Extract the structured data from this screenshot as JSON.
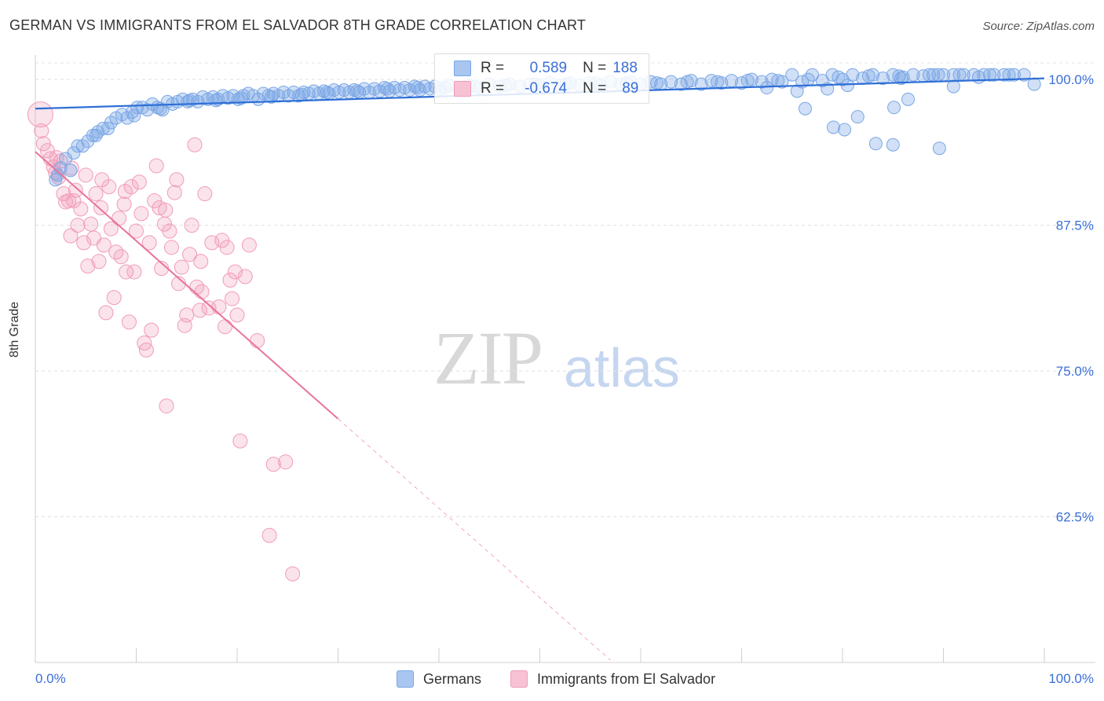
{
  "title": "GERMAN VS IMMIGRANTS FROM EL SALVADOR 8TH GRADE CORRELATION CHART",
  "source": "Source: ZipAtlas.com",
  "watermark": {
    "zip": "ZIP",
    "atlas": "atlas"
  },
  "legend": {
    "series1": {
      "r_label": "R =",
      "r_value": "0.589",
      "n_label": "N =",
      "n_value": "188"
    },
    "series2": {
      "r_label": "R =",
      "r_value": "-0.674",
      "n_label": "N =",
      "n_value": "89"
    }
  },
  "bottom_legend": [
    "Germans",
    "Immigrants from El Salvador"
  ],
  "colors": {
    "blue": "#7aa7e6",
    "blue_line": "#2f6fd6",
    "pink": "#f19bb8",
    "pink_line": "#e8739d",
    "axis_text": "#3a6fd8"
  },
  "chart_data": {
    "type": "scatter",
    "title": "GERMAN VS IMMIGRANTS FROM EL SALVADOR 8TH GRADE CORRELATION CHART",
    "xlabel": "",
    "ylabel": "8th Grade",
    "xlim": [
      0,
      100
    ],
    "ylim": [
      50,
      102.1
    ],
    "x_tick_labels": [
      "0.0%",
      "100.0%"
    ],
    "y_ticks": [
      100,
      87.5,
      75,
      62.5
    ],
    "y_tick_labels": [
      "100.0%",
      "87.5%",
      "75.0%",
      "62.5%"
    ],
    "grid": true,
    "series": [
      {
        "name": "Germans",
        "color": "#7aa7e6",
        "trend": {
          "x": [
            0,
            100
          ],
          "y": [
            97.5,
            100.1
          ]
        },
        "points": [
          [
            2,
            91.4
          ],
          [
            2.5,
            92.4
          ],
          [
            3,
            93.2
          ],
          [
            3.5,
            92.2
          ],
          [
            4.2,
            94.3
          ],
          [
            4.7,
            94.3
          ],
          [
            5.2,
            94.7
          ],
          [
            5.7,
            95.2
          ],
          [
            6.2,
            95.5
          ],
          [
            6.7,
            95.8
          ],
          [
            7.2,
            95.8
          ],
          [
            8,
            96.7
          ],
          [
            8.6,
            97
          ],
          [
            9.1,
            96.7
          ],
          [
            9.6,
            97.2
          ],
          [
            10.1,
            97.6
          ],
          [
            10.6,
            97.6
          ],
          [
            11.1,
            97.4
          ],
          [
            11.6,
            97.9
          ],
          [
            12.1,
            97.6
          ],
          [
            12.6,
            97.4
          ],
          [
            13.1,
            98.1
          ],
          [
            13.6,
            97.9
          ],
          [
            14.1,
            98.1
          ],
          [
            14.6,
            98.3
          ],
          [
            15.1,
            98.1
          ],
          [
            15.6,
            98.3
          ],
          [
            16.1,
            98.1
          ],
          [
            16.6,
            98.5
          ],
          [
            17.1,
            98.3
          ],
          [
            17.6,
            98.5
          ],
          [
            18.1,
            98.3
          ],
          [
            18.6,
            98.6
          ],
          [
            19.1,
            98.4
          ],
          [
            19.6,
            98.6
          ],
          [
            20.1,
            98.3
          ],
          [
            20.6,
            98.6
          ],
          [
            21.1,
            98.8
          ],
          [
            21.6,
            98.6
          ],
          [
            22.1,
            98.3
          ],
          [
            22.6,
            98.8
          ],
          [
            23.1,
            98.6
          ],
          [
            23.6,
            98.8
          ],
          [
            24.1,
            98.6
          ],
          [
            24.6,
            98.9
          ],
          [
            25.1,
            98.6
          ],
          [
            25.6,
            98.9
          ],
          [
            26.1,
            98.6
          ],
          [
            26.6,
            98.9
          ],
          [
            27.1,
            98.8
          ],
          [
            27.6,
            99
          ],
          [
            28.1,
            98.8
          ],
          [
            28.6,
            99
          ],
          [
            29.1,
            98.8
          ],
          [
            29.6,
            99.1
          ],
          [
            30.1,
            98.9
          ],
          [
            30.6,
            99.1
          ],
          [
            31.1,
            98.9
          ],
          [
            31.6,
            99.1
          ],
          [
            32.1,
            98.9
          ],
          [
            32.6,
            99.2
          ],
          [
            33.1,
            98.9
          ],
          [
            33.6,
            99.2
          ],
          [
            34.1,
            99
          ],
          [
            34.6,
            99.3
          ],
          [
            35.1,
            99
          ],
          [
            35.6,
            99.3
          ],
          [
            36.1,
            99.1
          ],
          [
            36.6,
            99.3
          ],
          [
            37.1,
            99.1
          ],
          [
            37.6,
            99.4
          ],
          [
            38.1,
            99.1
          ],
          [
            38.6,
            99.4
          ],
          [
            39.1,
            99.2
          ],
          [
            39.6,
            99.4
          ],
          [
            40.1,
            99.2
          ],
          [
            41,
            99.5
          ],
          [
            42,
            99.3
          ],
          [
            43,
            99.5
          ],
          [
            44,
            99.3
          ],
          [
            45,
            99.6
          ],
          [
            46,
            99.4
          ],
          [
            47,
            99.6
          ],
          [
            48,
            99.4
          ],
          [
            49,
            99.6
          ],
          [
            50,
            99.5
          ],
          [
            51,
            99.7
          ],
          [
            52,
            99.5
          ],
          [
            53,
            99.7
          ],
          [
            54,
            99.5
          ],
          [
            55,
            99.7
          ],
          [
            56,
            99.5
          ],
          [
            57,
            99.8
          ],
          [
            58,
            99.6
          ],
          [
            59,
            99.8
          ],
          [
            60,
            99.6
          ],
          [
            61,
            99.8
          ],
          [
            62,
            99.6
          ],
          [
            63,
            99.8
          ],
          [
            64,
            99.6
          ],
          [
            65,
            99.9
          ],
          [
            66,
            99.6
          ],
          [
            67,
            99.9
          ],
          [
            68,
            99.7
          ],
          [
            69,
            99.9
          ],
          [
            70,
            99.7
          ],
          [
            71,
            100
          ],
          [
            72,
            99.8
          ],
          [
            73,
            100
          ],
          [
            74,
            99.8
          ],
          [
            75,
            100.4
          ],
          [
            76,
            99.8
          ],
          [
            77,
            100.4
          ],
          [
            78,
            99.9
          ],
          [
            79,
            100.4
          ],
          [
            80,
            100
          ],
          [
            81,
            100.4
          ],
          [
            82,
            100.1
          ],
          [
            83,
            100.4
          ],
          [
            84,
            100.1
          ],
          [
            85,
            100.4
          ],
          [
            86,
            100.2
          ],
          [
            87,
            100.4
          ],
          [
            88,
            100.3
          ],
          [
            89,
            100.4
          ],
          [
            90,
            100.4
          ],
          [
            91,
            100.4
          ],
          [
            92,
            100.4
          ],
          [
            93,
            100.4
          ],
          [
            94,
            100.4
          ],
          [
            95,
            100.4
          ],
          [
            96,
            100.4
          ],
          [
            97,
            100.4
          ],
          [
            98,
            100.4
          ],
          [
            99,
            99.6
          ],
          [
            2.2,
            91.8
          ],
          [
            3.8,
            93.7
          ],
          [
            6,
            95.2
          ],
          [
            7.5,
            96.3
          ],
          [
            9.8,
            96.9
          ],
          [
            12.4,
            97.5
          ],
          [
            15.3,
            98.2
          ],
          [
            17.9,
            98.2
          ],
          [
            20.4,
            98.4
          ],
          [
            23.4,
            98.5
          ],
          [
            26.4,
            98.7
          ],
          [
            28.9,
            98.9
          ],
          [
            31.9,
            99
          ],
          [
            34.9,
            99.2
          ],
          [
            37.9,
            99.3
          ],
          [
            40.6,
            99.3
          ],
          [
            43.6,
            99.4
          ],
          [
            46.6,
            99.5
          ],
          [
            49.6,
            99.6
          ],
          [
            52.6,
            99.6
          ],
          [
            55.6,
            99.7
          ],
          [
            58.6,
            99.7
          ],
          [
            61.6,
            99.7
          ],
          [
            64.6,
            99.8
          ],
          [
            67.6,
            99.8
          ],
          [
            70.6,
            99.9
          ],
          [
            73.6,
            99.9
          ],
          [
            76.6,
            100
          ],
          [
            79.6,
            100.2
          ],
          [
            82.6,
            100.3
          ],
          [
            85.6,
            100.3
          ],
          [
            88.6,
            100.4
          ],
          [
            91.6,
            100.4
          ],
          [
            94.6,
            100.4
          ],
          [
            72.5,
            99.3
          ],
          [
            75.5,
            99
          ],
          [
            78.5,
            99.2
          ],
          [
            80.5,
            99.5
          ],
          [
            85.8,
            100.1
          ],
          [
            89.5,
            100.4
          ],
          [
            91,
            99.4
          ],
          [
            93.5,
            100.2
          ],
          [
            96.5,
            100.4
          ],
          [
            76.3,
            97.5
          ],
          [
            79.1,
            95.9
          ],
          [
            80.2,
            95.7
          ],
          [
            81.5,
            96.8
          ],
          [
            83.3,
            94.5
          ],
          [
            85,
            94.4
          ],
          [
            85.1,
            97.6
          ],
          [
            86.5,
            98.3
          ],
          [
            89.6,
            94.1
          ]
        ]
      },
      {
        "name": "Immigrants from El Salvador",
        "color": "#f19bb8",
        "trend": {
          "x": [
            0,
            30
          ],
          "y": [
            93.8,
            70.9
          ]
        },
        "trend_dashed": {
          "x": [
            30,
            57
          ],
          "y": [
            70.9,
            50.2
          ]
        },
        "points": [
          [
            0.5,
            97
          ],
          [
            0.6,
            95.6
          ],
          [
            0.8,
            94.5
          ],
          [
            1.2,
            93.9
          ],
          [
            1.5,
            93.2
          ],
          [
            1.8,
            92.5
          ],
          [
            2,
            92
          ],
          [
            2.3,
            91.6
          ],
          [
            2.5,
            93
          ],
          [
            2.8,
            90.2
          ],
          [
            3,
            89.5
          ],
          [
            3.3,
            89.6
          ],
          [
            3.5,
            86.6
          ],
          [
            3.8,
            89.6
          ],
          [
            4,
            90.5
          ],
          [
            4.2,
            87.5
          ],
          [
            4.5,
            88.9
          ],
          [
            4.8,
            86
          ],
          [
            5,
            91.8
          ],
          [
            5.2,
            84
          ],
          [
            5.5,
            87.6
          ],
          [
            5.8,
            86.4
          ],
          [
            6,
            90.2
          ],
          [
            6.3,
            84.4
          ],
          [
            6.5,
            89
          ],
          [
            6.8,
            85.8
          ],
          [
            7,
            80
          ],
          [
            7.3,
            90.8
          ],
          [
            7.5,
            87.2
          ],
          [
            7.8,
            81.3
          ],
          [
            8,
            85.2
          ],
          [
            8.3,
            88.1
          ],
          [
            8.5,
            84.8
          ],
          [
            8.8,
            89.3
          ],
          [
            9,
            83.5
          ],
          [
            9.3,
            79.2
          ],
          [
            9.5,
            90.8
          ],
          [
            9.8,
            83.5
          ],
          [
            10,
            87
          ],
          [
            10.3,
            91.2
          ],
          [
            10.5,
            88.5
          ],
          [
            10.8,
            77.4
          ],
          [
            11,
            76.8
          ],
          [
            11.3,
            86
          ],
          [
            11.5,
            78.5
          ],
          [
            11.8,
            89.6
          ],
          [
            12,
            92.6
          ],
          [
            12.3,
            89
          ],
          [
            12.5,
            83.8
          ],
          [
            12.8,
            87.6
          ],
          [
            13,
            72
          ],
          [
            13.3,
            87
          ],
          [
            13.5,
            85.6
          ],
          [
            13.8,
            90.3
          ],
          [
            14,
            91.4
          ],
          [
            14.2,
            82.5
          ],
          [
            14.5,
            83.9
          ],
          [
            15,
            79.8
          ],
          [
            15.3,
            85
          ],
          [
            15.5,
            87.5
          ],
          [
            15.8,
            94.4
          ],
          [
            16,
            82.2
          ],
          [
            16.3,
            80.2
          ],
          [
            16.5,
            81.8
          ],
          [
            16.8,
            90.2
          ],
          [
            17.2,
            80.4
          ],
          [
            17.5,
            86
          ],
          [
            18.2,
            80.5
          ],
          [
            18.8,
            78.8
          ],
          [
            19,
            85.6
          ],
          [
            19.3,
            82.8
          ],
          [
            19.5,
            81.2
          ],
          [
            20,
            79.8
          ],
          [
            20.3,
            69
          ],
          [
            20.8,
            83.1
          ],
          [
            21.2,
            85.8
          ],
          [
            22,
            77.6
          ],
          [
            23.2,
            60.9
          ],
          [
            23.6,
            67
          ],
          [
            24.8,
            67.2
          ],
          [
            25.5,
            57.6
          ],
          [
            3.6,
            92.4
          ],
          [
            2.1,
            93.3
          ],
          [
            6.6,
            91.4
          ],
          [
            8.9,
            90.4
          ],
          [
            12.9,
            88.8
          ],
          [
            16.4,
            84.4
          ],
          [
            18.5,
            86.2
          ],
          [
            19.8,
            83.5
          ],
          [
            14.8,
            78.9
          ]
        ]
      }
    ]
  }
}
